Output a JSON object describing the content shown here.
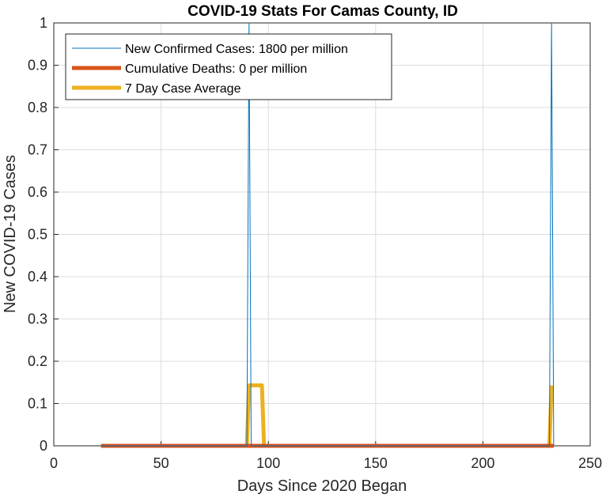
{
  "chart_data": {
    "type": "line",
    "title": "COVID-19 Stats For Camas County, ID",
    "xlabel": "Days Since 2020 Began",
    "ylabel": "New COVID-19 Cases",
    "xlim": [
      0,
      250
    ],
    "ylim": [
      0,
      1
    ],
    "xticks": [
      "0",
      "50",
      "100",
      "150",
      "200",
      "250"
    ],
    "yticks": [
      "0",
      "0.1",
      "0.2",
      "0.3",
      "0.4",
      "0.5",
      "0.6",
      "0.7",
      "0.8",
      "0.9",
      "1"
    ],
    "grid": true,
    "legend_position": "top-left",
    "series": [
      {
        "name": "New Confirmed Cases: 1800 per million",
        "color": "#0072BD",
        "style": "thin",
        "x": [
          22,
          90,
          91,
          92,
          231,
          232,
          233
        ],
        "y": [
          0,
          0,
          1,
          0,
          0,
          1,
          0
        ]
      },
      {
        "name": "Cumulative Deaths: 0 per million",
        "color": "#D95319",
        "style": "thick",
        "x": [
          22,
          233
        ],
        "y": [
          0,
          0
        ]
      },
      {
        "name": "7 Day Case Average",
        "color": "#EDB120",
        "style": "thick",
        "x": [
          22,
          90,
          91,
          97,
          98,
          231,
          232
        ],
        "y": [
          0,
          0,
          0.1429,
          0.1429,
          0,
          0,
          0.1429
        ]
      }
    ]
  }
}
